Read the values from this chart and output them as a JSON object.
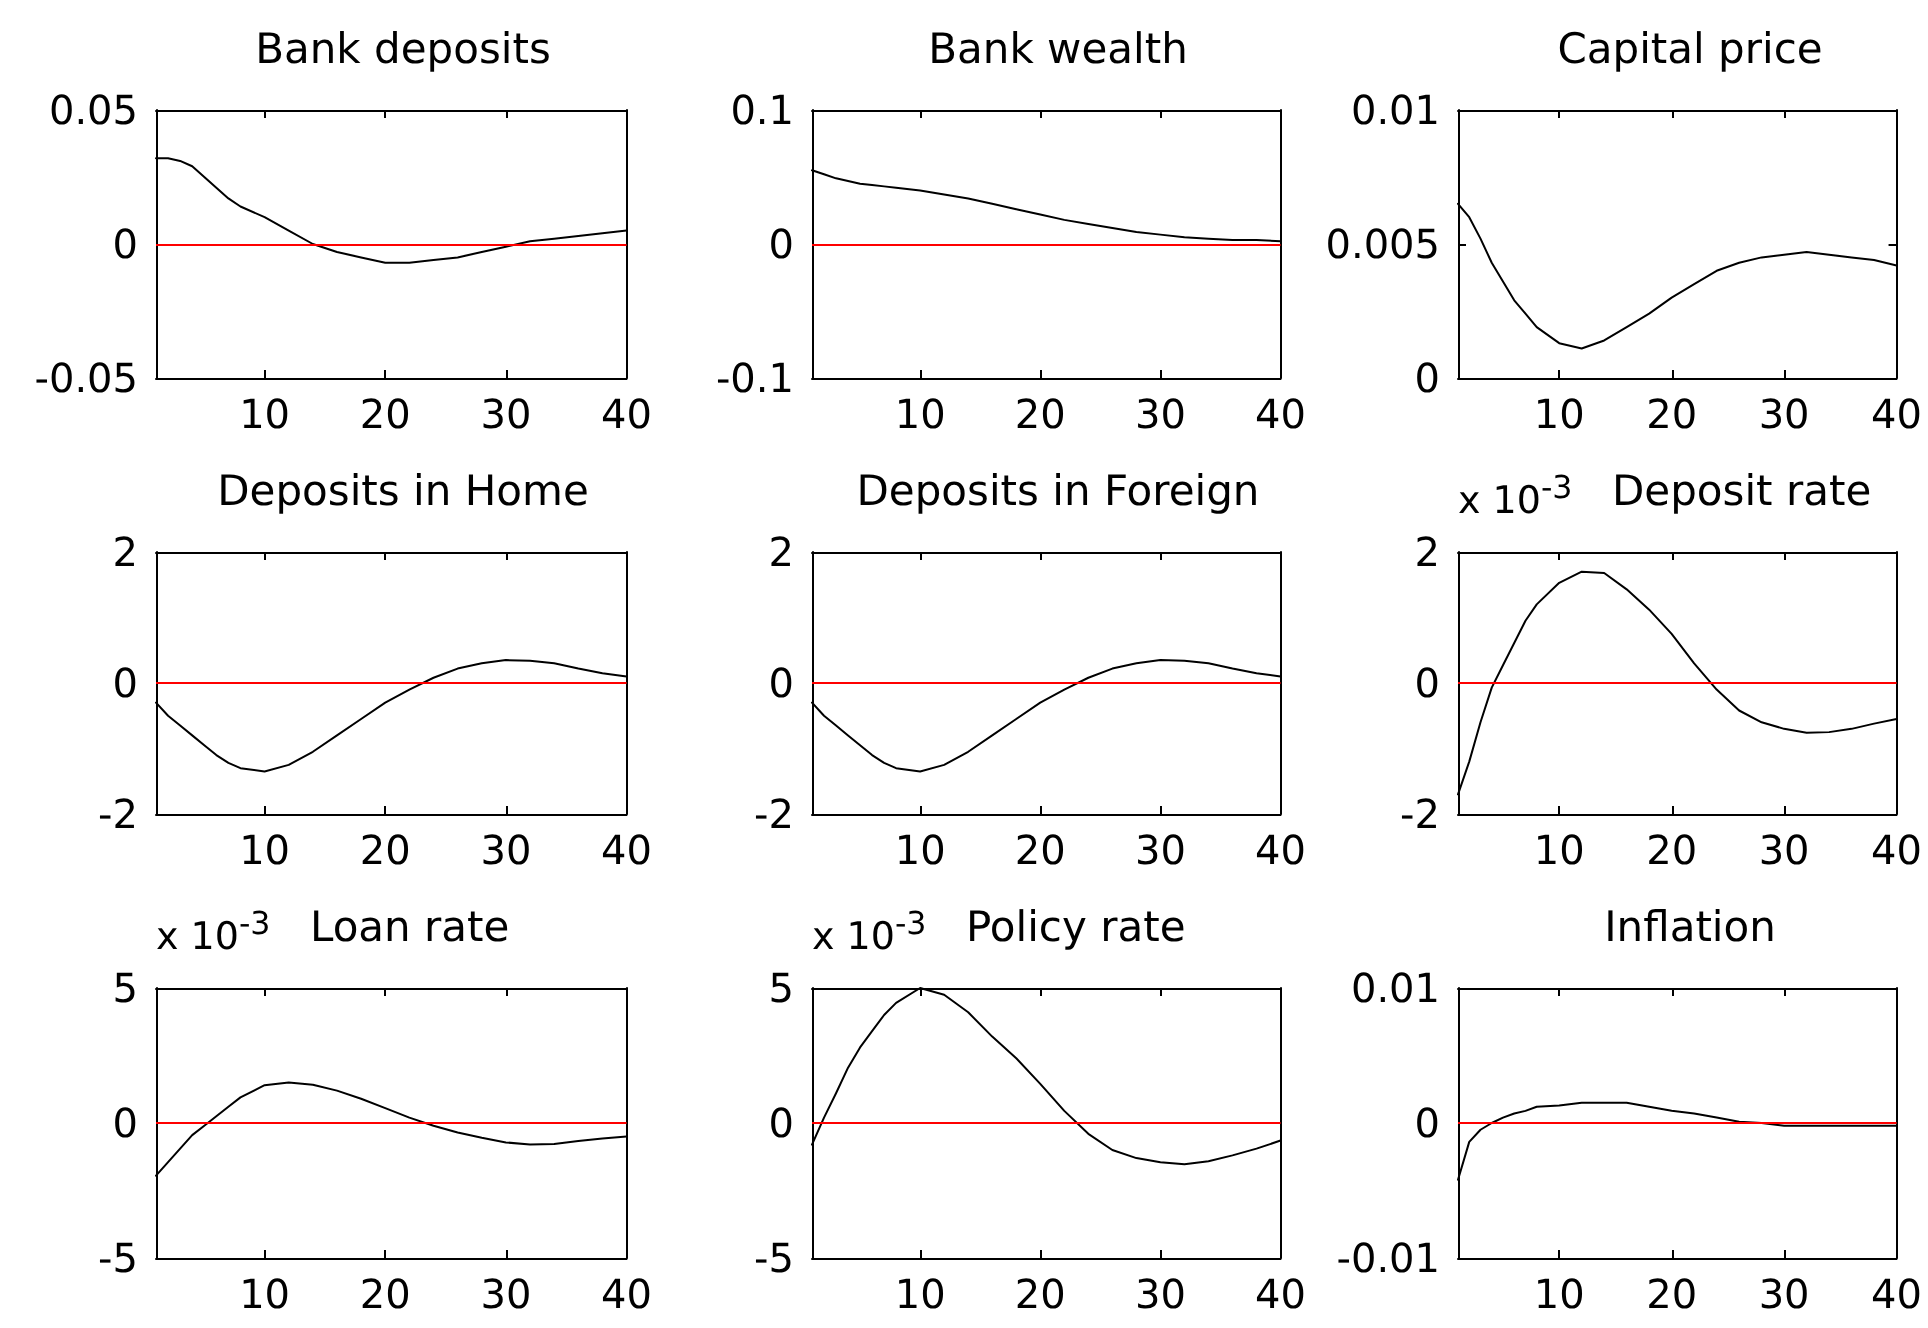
{
  "chart_data": [
    {
      "type": "line",
      "title": "Bank deposits",
      "x": [
        1,
        2,
        3,
        4,
        5,
        6,
        7,
        8,
        10,
        12,
        14,
        16,
        18,
        20,
        22,
        24,
        26,
        28,
        30,
        32,
        34,
        36,
        38,
        40
      ],
      "values": [
        0.032,
        0.032,
        0.031,
        0.029,
        0.025,
        0.021,
        0.017,
        0.014,
        0.01,
        0.005,
        0.0,
        -0.003,
        -0.005,
        -0.007,
        -0.007,
        -0.006,
        -0.005,
        -0.003,
        -0.001,
        0.001,
        0.002,
        0.003,
        0.004,
        0.005
      ],
      "color": "#000000",
      "xlim": [
        1,
        40
      ],
      "xticks": [
        10,
        20,
        30,
        40
      ],
      "ylim": [
        -0.05,
        0.05
      ],
      "yticks": [
        -0.05,
        0,
        0.05
      ],
      "ref_lines": [
        {
          "axis": "y",
          "value": 0,
          "color": "#ff0000"
        }
      ]
    },
    {
      "type": "line",
      "title": "Bank wealth",
      "x": [
        1,
        2,
        3,
        4,
        5,
        6,
        7,
        8,
        10,
        12,
        14,
        16,
        18,
        20,
        22,
        24,
        26,
        28,
        30,
        32,
        34,
        36,
        38,
        40
      ],
      "values": [
        0.055,
        0.052,
        0.049,
        0.047,
        0.045,
        0.044,
        0.043,
        0.042,
        0.04,
        0.037,
        0.034,
        0.03,
        0.026,
        0.022,
        0.018,
        0.015,
        0.012,
        0.009,
        0.007,
        0.005,
        0.004,
        0.003,
        0.003,
        0.002
      ],
      "color": "#000000",
      "xlim": [
        1,
        40
      ],
      "xticks": [
        10,
        20,
        30,
        40
      ],
      "ylim": [
        -0.1,
        0.1
      ],
      "yticks": [
        -0.1,
        0,
        0.1
      ],
      "ref_lines": [
        {
          "axis": "y",
          "value": 0,
          "color": "#ff0000"
        }
      ]
    },
    {
      "type": "line",
      "title": "Capital price",
      "x": [
        1,
        2,
        3,
        4,
        5,
        6,
        7,
        8,
        10,
        12,
        14,
        16,
        18,
        20,
        22,
        24,
        26,
        28,
        30,
        32,
        34,
        36,
        38,
        40
      ],
      "values": [
        0.0065,
        0.006,
        0.0052,
        0.0043,
        0.0036,
        0.0029,
        0.0024,
        0.0019,
        0.0013,
        0.0011,
        0.0014,
        0.0019,
        0.0024,
        0.003,
        0.0035,
        0.004,
        0.0043,
        0.0045,
        0.0046,
        0.0047,
        0.0046,
        0.0045,
        0.0044,
        0.0042
      ],
      "color": "#000000",
      "xlim": [
        1,
        40
      ],
      "xticks": [
        10,
        20,
        30,
        40
      ],
      "ylim": [
        0,
        0.01
      ],
      "yticks": [
        0,
        0.005,
        0.01
      ]
    },
    {
      "type": "line",
      "title": "Deposits in Home",
      "x": [
        1,
        2,
        3,
        4,
        5,
        6,
        7,
        8,
        10,
        12,
        14,
        16,
        18,
        20,
        22,
        24,
        26,
        28,
        30,
        32,
        34,
        36,
        38,
        40
      ],
      "values": [
        -0.3,
        -0.5,
        -0.65,
        -0.8,
        -0.95,
        -1.1,
        -1.22,
        -1.3,
        -1.35,
        -1.25,
        -1.05,
        -0.8,
        -0.55,
        -0.3,
        -0.1,
        0.08,
        0.22,
        0.3,
        0.35,
        0.34,
        0.3,
        0.22,
        0.15,
        0.1
      ],
      "color": "#000000",
      "xlim": [
        1,
        40
      ],
      "xticks": [
        10,
        20,
        30,
        40
      ],
      "ylim": [
        -2,
        2
      ],
      "yticks": [
        -2,
        0,
        2
      ],
      "ref_lines": [
        {
          "axis": "y",
          "value": 0,
          "color": "#ff0000"
        }
      ]
    },
    {
      "type": "line",
      "title": "Deposits in Foreign",
      "x": [
        1,
        2,
        3,
        4,
        5,
        6,
        7,
        8,
        10,
        12,
        14,
        16,
        18,
        20,
        22,
        24,
        26,
        28,
        30,
        32,
        34,
        36,
        38,
        40
      ],
      "values": [
        -0.3,
        -0.5,
        -0.65,
        -0.8,
        -0.95,
        -1.1,
        -1.22,
        -1.3,
        -1.35,
        -1.25,
        -1.05,
        -0.8,
        -0.55,
        -0.3,
        -0.1,
        0.08,
        0.22,
        0.3,
        0.35,
        0.34,
        0.3,
        0.22,
        0.15,
        0.1
      ],
      "color": "#000000",
      "xlim": [
        1,
        40
      ],
      "xticks": [
        10,
        20,
        30,
        40
      ],
      "ylim": [
        -2,
        2
      ],
      "yticks": [
        -2,
        0,
        2
      ],
      "ref_lines": [
        {
          "axis": "y",
          "value": 0,
          "color": "#ff0000"
        }
      ]
    },
    {
      "type": "line",
      "title": "Deposit rate",
      "annotations": [
        "x 10$^{-3}$"
      ],
      "x": [
        1,
        2,
        3,
        4,
        5,
        6,
        7,
        8,
        10,
        12,
        14,
        16,
        18,
        20,
        22,
        24,
        26,
        28,
        30,
        32,
        34,
        36,
        38,
        40
      ],
      "values": [
        -1.7,
        -1.2,
        -0.6,
        -0.07,
        0.27,
        0.61,
        0.95,
        1.2,
        1.53,
        1.7,
        1.68,
        1.43,
        1.12,
        0.75,
        0.3,
        -0.1,
        -0.42,
        -0.6,
        -0.7,
        -0.76,
        -0.75,
        -0.7,
        -0.62,
        -0.55
      ],
      "color": "#000000",
      "xlim": [
        1,
        40
      ],
      "xticks": [
        10,
        20,
        30,
        40
      ],
      "ylim": [
        -2,
        2
      ],
      "yticks": [
        -2,
        0,
        2
      ],
      "ref_lines": [
        {
          "axis": "y",
          "value": 0,
          "color": "#ff0000"
        }
      ]
    },
    {
      "type": "line",
      "title": "Loan rate",
      "annotations": [
        "x 10$^{-3}$"
      ],
      "x": [
        1,
        2,
        3,
        4,
        5,
        6,
        7,
        8,
        10,
        12,
        14,
        16,
        18,
        20,
        22,
        24,
        26,
        28,
        30,
        32,
        34,
        36,
        38,
        40
      ],
      "values": [
        -1.95,
        -1.45,
        -0.95,
        -0.45,
        -0.1,
        0.25,
        0.6,
        0.95,
        1.4,
        1.5,
        1.42,
        1.2,
        0.9,
        0.55,
        0.2,
        -0.1,
        -0.35,
        -0.55,
        -0.72,
        -0.8,
        -0.78,
        -0.67,
        -0.57,
        -0.5
      ],
      "color": "#000000",
      "xlim": [
        1,
        40
      ],
      "xticks": [
        10,
        20,
        30,
        40
      ],
      "ylim": [
        -5,
        5
      ],
      "yticks": [
        -5,
        0,
        5
      ],
      "ref_lines": [
        {
          "axis": "y",
          "value": 0,
          "color": "#ff0000"
        }
      ]
    },
    {
      "type": "line",
      "title": "Policy rate",
      "annotations": [
        "x 10$^{-3}$"
      ],
      "x": [
        1,
        2,
        3,
        4,
        5,
        6,
        7,
        8,
        10,
        12,
        14,
        16,
        18,
        20,
        22,
        24,
        26,
        28,
        30,
        32,
        34,
        36,
        38,
        40
      ],
      "values": [
        -0.8,
        0.2,
        1.1,
        2.05,
        2.8,
        3.4,
        4.0,
        4.45,
        5.0,
        4.75,
        4.1,
        3.2,
        2.4,
        1.45,
        0.45,
        -0.4,
        -1.0,
        -1.3,
        -1.45,
        -1.53,
        -1.42,
        -1.2,
        -0.95,
        -0.65
      ],
      "color": "#000000",
      "xlim": [
        1,
        40
      ],
      "xticks": [
        10,
        20,
        30,
        40
      ],
      "ylim": [
        -5,
        5
      ],
      "yticks": [
        -5,
        0,
        5
      ],
      "ref_lines": [
        {
          "axis": "y",
          "value": 0,
          "color": "#ff0000"
        }
      ]
    },
    {
      "type": "line",
      "title": "Inflation",
      "x": [
        1,
        2,
        3,
        4,
        5,
        6,
        7,
        8,
        10,
        12,
        14,
        16,
        18,
        20,
        22,
        24,
        26,
        28,
        30,
        32,
        34,
        36,
        38,
        40
      ],
      "values": [
        -0.0042,
        -0.0014,
        -0.0005,
        0.0,
        0.0004,
        0.0007,
        0.0009,
        0.0012,
        0.0013,
        0.0015,
        0.0015,
        0.0015,
        0.0012,
        0.0009,
        0.0007,
        0.0004,
        0.0001,
        0.0,
        -0.0002,
        -0.0002,
        -0.0002,
        -0.0002,
        -0.0002,
        -0.0002
      ],
      "color": "#000000",
      "xlim": [
        1,
        40
      ],
      "xticks": [
        10,
        20,
        30,
        40
      ],
      "ylim": [
        -0.01,
        0.01
      ],
      "yticks": [
        -0.01,
        0,
        0.01
      ],
      "ref_lines": [
        {
          "axis": "y",
          "value": 0,
          "color": "#ff0000"
        }
      ]
    }
  ]
}
